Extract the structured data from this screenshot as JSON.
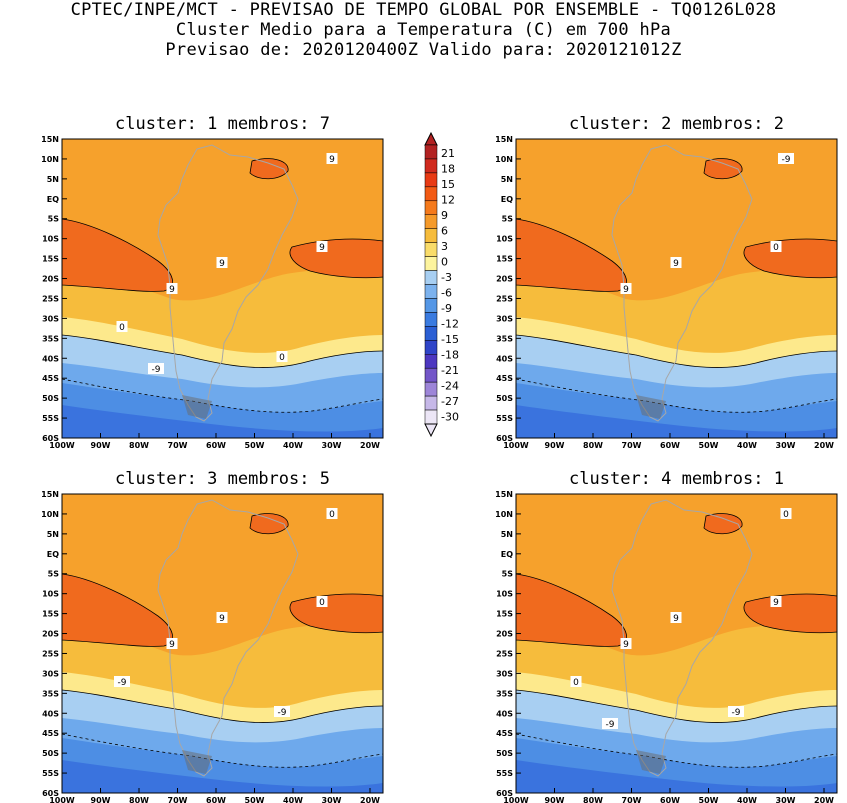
{
  "header": {
    "line1": "CPTEC/INPE/MCT - PREVISAO DE TEMPO GLOBAL POR ENSEMBLE - TQ0126L028",
    "line2": "Cluster Medio para a Temperatura (C) em 700 hPa",
    "line3": "Previsao de: 2020120400Z   Valido para: 2020121012Z"
  },
  "panels": [
    {
      "title": "cluster: 1  membros: 7",
      "contour_labels": [
        "9",
        "9",
        "9",
        "9",
        "0",
        "0",
        "-9"
      ]
    },
    {
      "title": "cluster: 2  membros: 2",
      "contour_labels": [
        "9",
        "9",
        "0",
        "-9"
      ]
    },
    {
      "title": "cluster: 3  membros: 5",
      "contour_labels": [
        "9",
        "9",
        "0",
        "0",
        "-9",
        "-9"
      ]
    },
    {
      "title": "cluster: 4  membros: 1",
      "contour_labels": [
        "9",
        "9",
        "9",
        "0",
        "0",
        "-9",
        "-9"
      ]
    }
  ],
  "lat_ticks": [
    "15N",
    "10N",
    "5N",
    "EQ",
    "5S",
    "10S",
    "15S",
    "20S",
    "25S",
    "30S",
    "35S",
    "40S",
    "45S",
    "50S",
    "55S",
    "60S"
  ],
  "lon_ticks": [
    "100W",
    "90W",
    "80W",
    "70W",
    "60W",
    "50W",
    "40W",
    "30W",
    "20W"
  ],
  "colorbar": {
    "labels": [
      "21",
      "18",
      "15",
      "12",
      "9",
      "6",
      "3",
      "0",
      "-3",
      "-6",
      "-9",
      "-12",
      "-15",
      "-18",
      "-21",
      "-24",
      "-27",
      "-30"
    ],
    "colors": [
      "#b22222",
      "#d02a1e",
      "#e83a14",
      "#f25a14",
      "#f57a1c",
      "#f59a2a",
      "#f6bc3c",
      "#f9dc6a",
      "#fdf49e",
      "#a8cff2",
      "#7cb2ee",
      "#5597e6",
      "#3a7be0",
      "#2b5fd4",
      "#2f44c8",
      "#4d37c0",
      "#7356c8",
      "#9d85d8",
      "#c6b8e8",
      "#ece6f6"
    ]
  },
  "colors": {
    "orange": "#f6a12c",
    "orange_light": "#f8be3c",
    "orange_dark": "#f06a1e",
    "yellow": "#fde98c",
    "blue_light": "#a8cff2",
    "blue_mid": "#6ea9ec",
    "blue": "#4d8ee4",
    "blue_dark": "#3a73de",
    "purple": "#5a48c8",
    "coast": "#a7a7a7"
  }
}
